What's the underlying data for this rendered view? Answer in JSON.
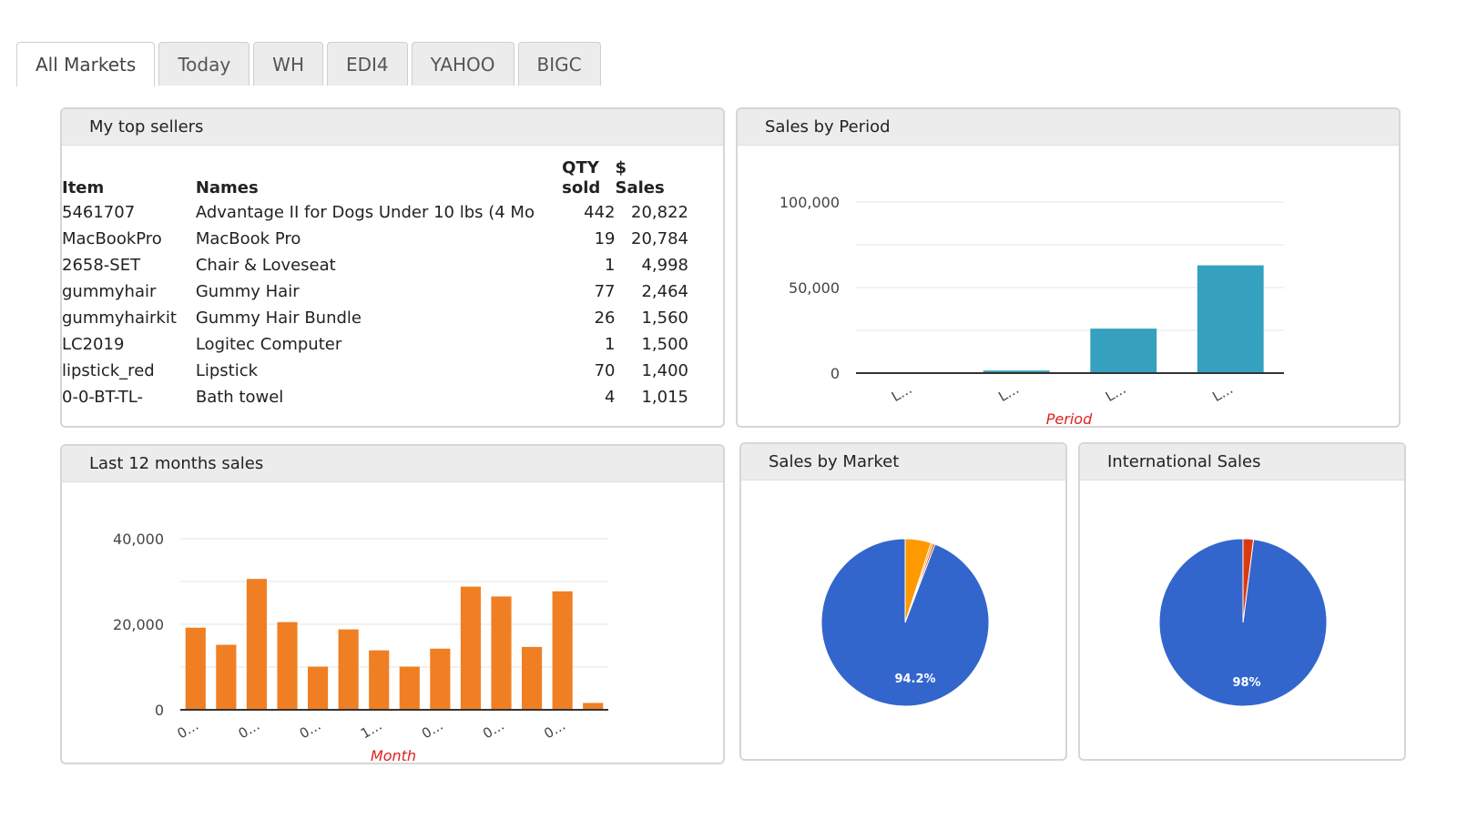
{
  "tabs": [
    {
      "label": "All Markets",
      "active": true
    },
    {
      "label": "Today"
    },
    {
      "label": "WH"
    },
    {
      "label": "EDI4"
    },
    {
      "label": "YAHOO"
    },
    {
      "label": "BIGC"
    }
  ],
  "top_sellers": {
    "title": "My top sellers",
    "headers": {
      "item": "Item",
      "names": "Names",
      "qty_line1": "QTY",
      "qty_line2": "sold",
      "sales_line1": "$",
      "sales_line2": "Sales"
    },
    "rows": [
      {
        "item": "5461707",
        "name": "Advantage II for Dogs Under 10 lbs (4 Mo",
        "qty": "442",
        "sales": "20,822"
      },
      {
        "item": "MacBookPro",
        "name": "MacBook Pro",
        "qty": "19",
        "sales": "20,784"
      },
      {
        "item": "2658-SET",
        "name": "Chair & Loveseat",
        "qty": "1",
        "sales": "4,998"
      },
      {
        "item": "gummyhair",
        "name": "Gummy Hair",
        "qty": "77",
        "sales": "2,464"
      },
      {
        "item": "gummyhairkit",
        "name": "Gummy Hair Bundle",
        "qty": "26",
        "sales": "1,560"
      },
      {
        "item": "LC2019",
        "name": "Logitec Computer",
        "qty": "1",
        "sales": "1,500"
      },
      {
        "item": "lipstick_red",
        "name": "Lipstick",
        "qty": "70",
        "sales": "1,400"
      },
      {
        "item": "0-0-BT-TL-",
        "name": "Bath towel",
        "qty": "4",
        "sales": "1,015"
      }
    ],
    "scroll_position": 0.0
  },
  "sales_by_period": {
    "title": "Sales by Period",
    "chart_data": {
      "type": "bar",
      "categories": [
        "L...",
        "L...",
        "L...",
        "L..."
      ],
      "values": [
        0,
        1500,
        26000,
        63000
      ],
      "xlabel": "Period",
      "ylabel": "",
      "ylim": [
        0,
        100000
      ],
      "yticks": [
        0,
        50000,
        100000
      ],
      "ytick_labels": [
        "0",
        "50,000",
        "100,000"
      ],
      "color": "#35a1bf",
      "grid": true
    }
  },
  "last_12_months": {
    "title": "Last 12 months sales",
    "chart_data": {
      "type": "bar",
      "categories": [
        "0...",
        "",
        "0...",
        "",
        "0...",
        "",
        "1...",
        "",
        "0...",
        "",
        "0...",
        "",
        "0...",
        ""
      ],
      "values": [
        19200,
        15200,
        30600,
        20500,
        10100,
        18800,
        13900,
        10100,
        14300,
        28800,
        26500,
        14700,
        27700,
        1600
      ],
      "xlabel": "Month",
      "ylabel": "",
      "ylim": [
        0,
        40000
      ],
      "yticks": [
        0,
        20000,
        40000
      ],
      "ytick_labels": [
        "0",
        "20,000",
        "40,000"
      ],
      "color": "#f07f23",
      "grid": true
    }
  },
  "sales_by_market": {
    "title": "Sales by Market",
    "chart_data": {
      "type": "pie",
      "values": [
        94.2,
        0.4,
        0.4,
        5.0
      ],
      "colors": [
        "#3366cc",
        "#dc3912",
        "#ff9900",
        "#ff9900"
      ],
      "slice_labels": [
        "94.2%",
        "",
        "",
        ""
      ],
      "start_angle": 0
    }
  },
  "international_sales": {
    "title": "International Sales",
    "chart_data": {
      "type": "pie",
      "values": [
        98,
        2
      ],
      "colors": [
        "#3366cc",
        "#dc3912"
      ],
      "slice_labels": [
        "98%",
        ""
      ],
      "start_angle": 0
    }
  }
}
